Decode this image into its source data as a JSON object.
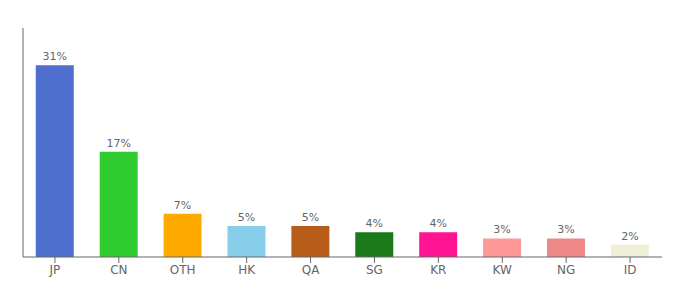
{
  "chart_data": {
    "type": "bar",
    "categories": [
      "JP",
      "CN",
      "OTH",
      "HK",
      "QA",
      "SG",
      "KR",
      "KW",
      "NG",
      "ID"
    ],
    "values": [
      31,
      17,
      7,
      5,
      5,
      4,
      4,
      3,
      3,
      2
    ],
    "value_labels": [
      "31%",
      "17%",
      "7%",
      "5%",
      "5%",
      "4%",
      "4%",
      "3%",
      "3%",
      "2%"
    ],
    "colors": [
      "#4f6fce",
      "#2ecc2e",
      "#ffaa00",
      "#87ceeb",
      "#b85c1a",
      "#1a7a1a",
      "#ff1493",
      "#ff9999",
      "#ee8888",
      "#f0f0d8"
    ],
    "ylim": [
      0,
      37
    ],
    "yticks": [],
    "data_labels": true,
    "tick_labels": "x"
  }
}
